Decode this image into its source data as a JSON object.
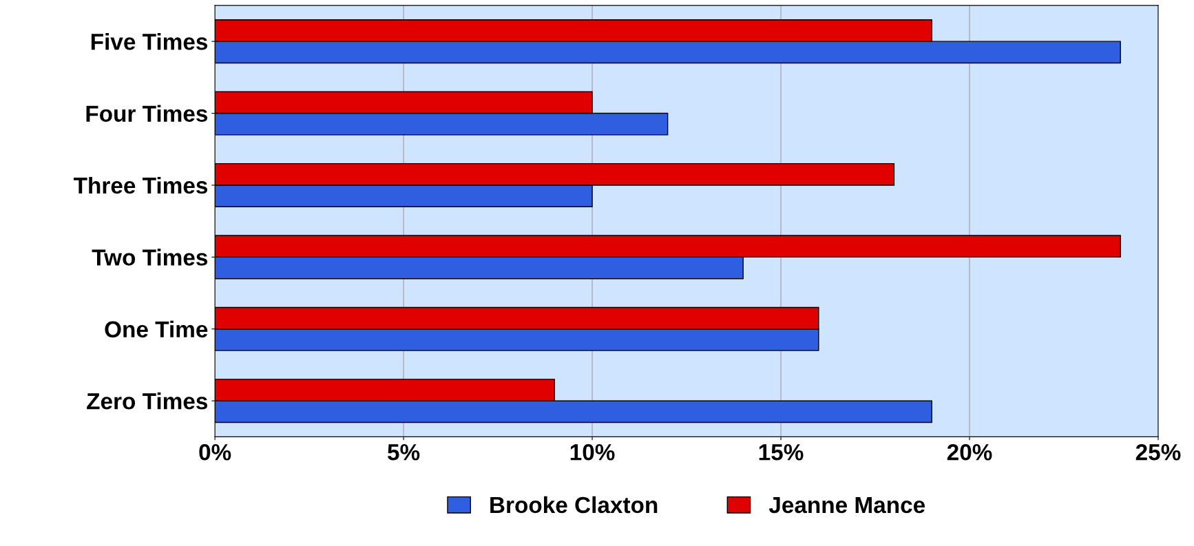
{
  "chart_data": {
    "type": "bar",
    "orientation": "horizontal",
    "categories": [
      "Five Times",
      "Four Times",
      "Three Times",
      "Two Times",
      "One Time",
      "Zero Times"
    ],
    "series": [
      {
        "name": "Brooke Claxton",
        "color": "#2f5fe0",
        "values": [
          24,
          12,
          10,
          14,
          16,
          19
        ]
      },
      {
        "name": "Jeanne Mance",
        "color": "#e00000",
        "values": [
          19,
          10,
          18,
          24,
          16,
          9
        ]
      }
    ],
    "xlim": [
      0,
      25
    ],
    "xticks": [
      {
        "value": 0,
        "label": "0%"
      },
      {
        "value": 5,
        "label": "5%"
      },
      {
        "value": 10,
        "label": "10%"
      },
      {
        "value": 15,
        "label": "15%"
      },
      {
        "value": 20,
        "label": "20%"
      },
      {
        "value": 25,
        "label": "25%"
      }
    ],
    "grid": "x",
    "legend": "bottom"
  }
}
